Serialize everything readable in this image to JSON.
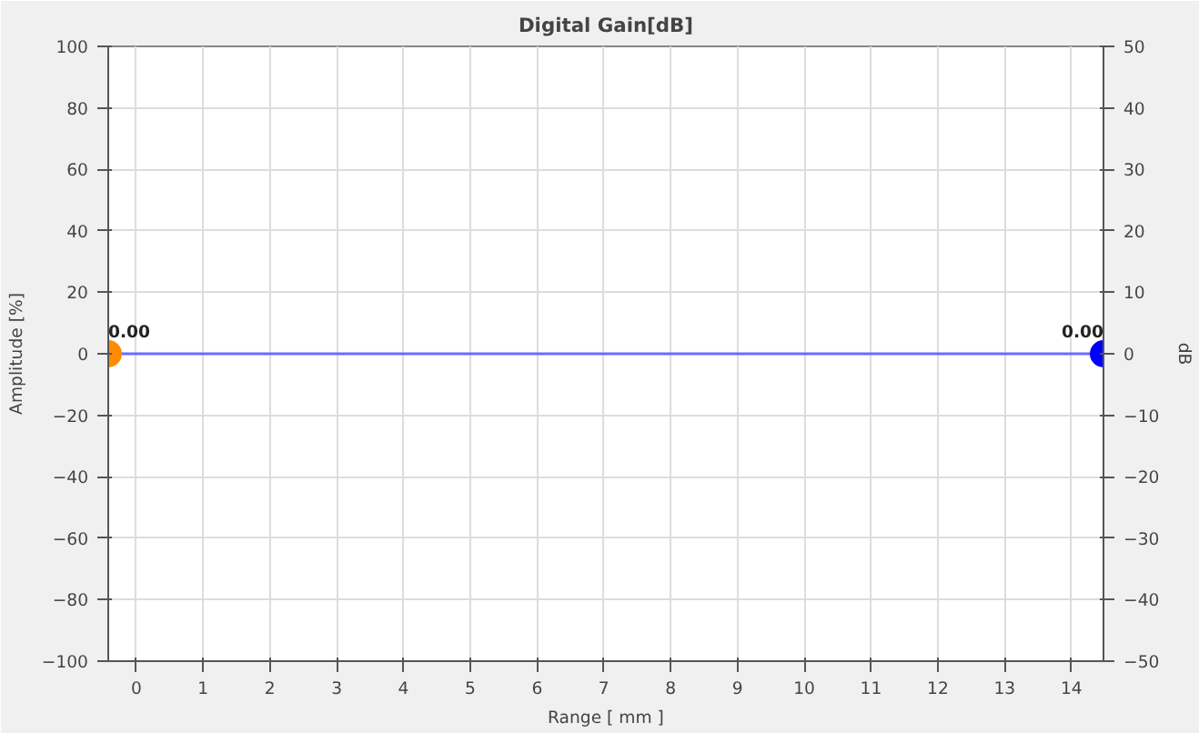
{
  "chart_data": {
    "type": "line",
    "title": "Digital Gain[dB]",
    "xlabel": "Range [ mm ]",
    "ylabel": "Amplitude [%]",
    "y2label": "dB",
    "xlim": [
      -0.42,
      14.48
    ],
    "xticks": [
      0,
      1,
      2,
      3,
      4,
      5,
      6,
      7,
      8,
      9,
      10,
      11,
      12,
      13,
      14
    ],
    "ylim": [
      -100,
      100
    ],
    "yticks": [
      -100,
      -80,
      -60,
      -40,
      -20,
      0,
      20,
      40,
      60,
      80,
      100
    ],
    "y2lim": [
      -50,
      50
    ],
    "y2ticks": [
      -50,
      -40,
      -30,
      -20,
      -10,
      0,
      10,
      20,
      30,
      40,
      50
    ],
    "grid": true,
    "marker": "circle",
    "line_style": "solid",
    "series": [
      {
        "x": [
          -0.42,
          14.48
        ],
        "values": [
          0,
          0
        ],
        "color": "#6b6bff",
        "colors": [
          "#ff8c00",
          "#0000ff"
        ],
        "value_labels": [
          "0.00",
          "0.00"
        ]
      }
    ]
  }
}
